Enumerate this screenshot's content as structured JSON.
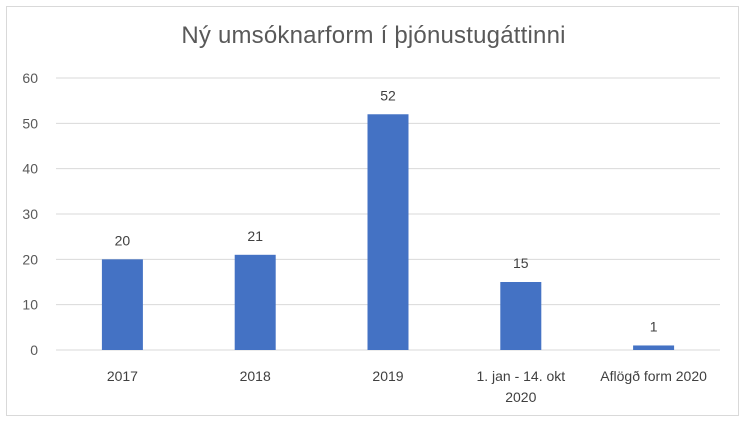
{
  "chart_data": {
    "type": "bar",
    "title": "Ný umsóknarform í þjónustugáttinni",
    "categories": [
      [
        "2017"
      ],
      [
        "2018"
      ],
      [
        "2019"
      ],
      [
        "1. jan - 14. okt",
        "2020"
      ],
      [
        "Aflögð form 2020"
      ]
    ],
    "values": [
      20,
      21,
      52,
      15,
      1
    ],
    "data_labels": [
      "20",
      "21",
      "52",
      "15",
      "1"
    ],
    "ylim": [
      0,
      60
    ],
    "yticks": [
      "0",
      "10",
      "20",
      "30",
      "40",
      "50",
      "60"
    ],
    "grid": true,
    "bar_color": "#4472c4",
    "grid_color": "#d9d9d9"
  }
}
